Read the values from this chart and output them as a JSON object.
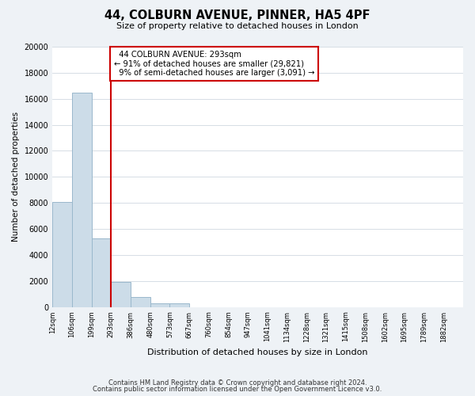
{
  "title": "44, COLBURN AVENUE, PINNER, HA5 4PF",
  "subtitle": "Size of property relative to detached houses in London",
  "xlabel": "Distribution of detached houses by size in London",
  "ylabel": "Number of detached properties",
  "bin_labels": [
    "12sqm",
    "106sqm",
    "199sqm",
    "293sqm",
    "386sqm",
    "480sqm",
    "573sqm",
    "667sqm",
    "760sqm",
    "854sqm",
    "947sqm",
    "1041sqm",
    "1134sqm",
    "1228sqm",
    "1321sqm",
    "1415sqm",
    "1508sqm",
    "1602sqm",
    "1695sqm",
    "1789sqm",
    "1882sqm"
  ],
  "bar_values": [
    8100,
    16500,
    5300,
    1900,
    800,
    300,
    300,
    0,
    0,
    0,
    0,
    0,
    0,
    0,
    0,
    0,
    0,
    0,
    0,
    0,
    0
  ],
  "bar_color": "#ccdce8",
  "bar_edge_color": "#9ab8cc",
  "marker_bin_index": 3,
  "annotation_title": "44 COLBURN AVENUE: 293sqm",
  "annotation_line1": "← 91% of detached houses are smaller (29,821)",
  "annotation_line2": "9% of semi-detached houses are larger (3,091) →",
  "marker_line_color": "#cc0000",
  "ylim": [
    0,
    20000
  ],
  "yticks": [
    0,
    2000,
    4000,
    6000,
    8000,
    10000,
    12000,
    14000,
    16000,
    18000,
    20000
  ],
  "footer1": "Contains HM Land Registry data © Crown copyright and database right 2024.",
  "footer2": "Contains public sector information licensed under the Open Government Licence v3.0.",
  "bg_color": "#eef2f6",
  "plot_bg_color": "#ffffff",
  "annotation_box_color": "#ffffff",
  "annotation_box_edge": "#cc0000",
  "grid_color": "#d0d8e0"
}
